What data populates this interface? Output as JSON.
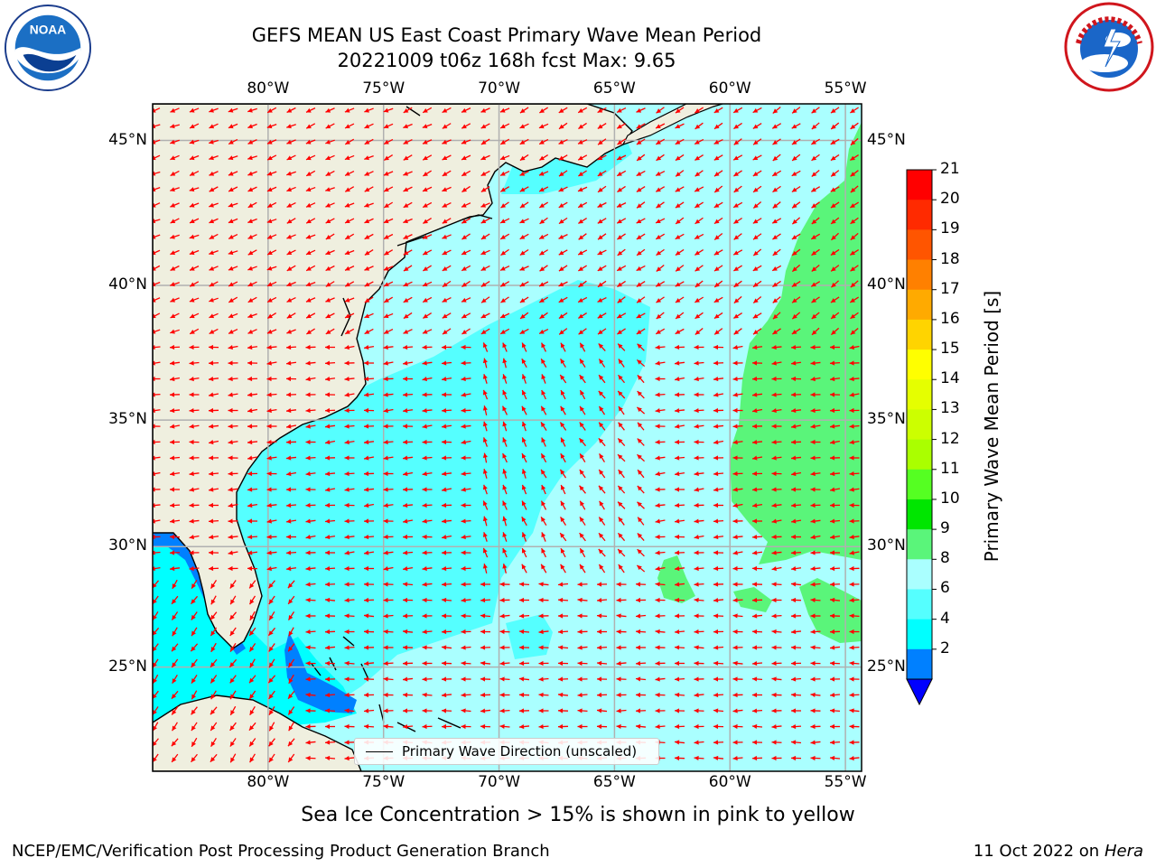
{
  "header": {
    "title": "GEFS MEAN US East Coast Primary Wave Mean Period",
    "subtitle": "20221009 t06z 168h fcst   Max: 9.65"
  },
  "logos": {
    "left": {
      "icon": "noaa-logo",
      "text": "NOAA"
    },
    "right": {
      "icon": "national-weather-service-logo",
      "text": "NATIONAL WEATHER SERVICE"
    }
  },
  "map": {
    "lon_labels": [
      "80°W",
      "75°W",
      "70°W",
      "65°W",
      "60°W",
      "55°W"
    ],
    "lat_labels": [
      "45°N",
      "40°N",
      "35°N",
      "30°N",
      "25°N"
    ],
    "extent": {
      "lon": [
        -85,
        -54.3
      ],
      "lat": [
        20.5,
        46.2
      ]
    },
    "land_color": "#efefdf",
    "grid_color": "#b0b0b0",
    "arrow_color": "#ff0000"
  },
  "colorbar": {
    "label": "Primary Wave Mean Period [s]",
    "ticks": [
      "21",
      "20",
      "19",
      "18",
      "17",
      "16",
      "15",
      "14",
      "13",
      "12",
      "11",
      "10",
      "9",
      "8",
      "6",
      "4",
      "2"
    ],
    "colors_top_to_bottom": [
      "#ff0000",
      "#ff2a00",
      "#ff5500",
      "#ff8000",
      "#ffaa00",
      "#ffd400",
      "#ffff00",
      "#e5ff00",
      "#ccff00",
      "#aaff00",
      "#55ff22",
      "#00e600",
      "#5af57a",
      "#aaffff",
      "#55ffff",
      "#00ffff",
      "#0080ff"
    ],
    "under_color": "#0000ff"
  },
  "legend": {
    "label": "Primary Wave Direction (unscaled)"
  },
  "note": "Sea Ice Concentration > 15% is shown in pink to yellow",
  "footer": {
    "left": "NCEP/EMC/Verification Post Processing Product Generation Branch",
    "date": "11 Oct 2022 on ",
    "machine": "Hera"
  }
}
